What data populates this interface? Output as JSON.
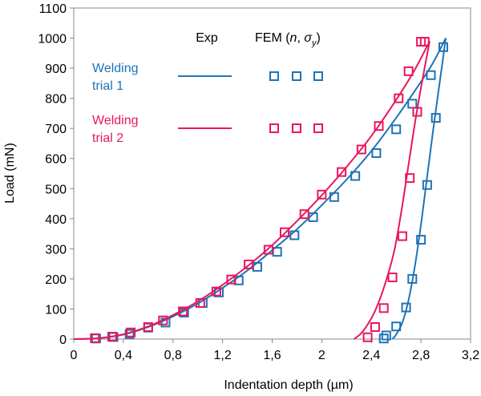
{
  "chart_data": {
    "type": "line",
    "xlabel": "Indentation depth (µm)",
    "ylabel": "Load (mN)",
    "xlim": [
      0,
      3.2
    ],
    "ylim": [
      0,
      1100
    ],
    "x_ticks": [
      "0",
      "0,4",
      "0,8",
      "1,2",
      "1,6",
      "2",
      "2,4",
      "2,8",
      "3,2"
    ],
    "y_ticks": [
      "0",
      "100",
      "200",
      "300",
      "400",
      "500",
      "600",
      "700",
      "800",
      "900",
      "1000",
      "1100"
    ],
    "grid": false,
    "legend": {
      "header_exp": "Exp",
      "header_fem_prefix": "FEM (",
      "header_fem_n": "n",
      "header_fem_comma": ", ",
      "header_fem_sigma": "σ",
      "header_fem_sub": "y",
      "header_fem_close": ")",
      "entries": [
        {
          "line1": "Welding",
          "line2": "trial 1",
          "color": "#1f73b7"
        },
        {
          "line1": "Welding",
          "line2": "trial 2",
          "color": "#e8175d"
        }
      ]
    },
    "series": [
      {
        "color": "#1f73b7",
        "exp_loading": [
          [
            0,
            0
          ],
          [
            0.2,
            3
          ],
          [
            0.4,
            15
          ],
          [
            0.6,
            40
          ],
          [
            0.8,
            75
          ],
          [
            1.0,
            118
          ],
          [
            1.2,
            170
          ],
          [
            1.4,
            228
          ],
          [
            1.6,
            295
          ],
          [
            1.8,
            365
          ],
          [
            2.0,
            445
          ],
          [
            2.2,
            530
          ],
          [
            2.4,
            625
          ],
          [
            2.6,
            735
          ],
          [
            2.8,
            855
          ],
          [
            2.9,
            920
          ],
          [
            3.0,
            1000
          ]
        ],
        "exp_unloading": [
          [
            3.0,
            1000
          ],
          [
            2.95,
            850
          ],
          [
            2.9,
            700
          ],
          [
            2.85,
            540
          ],
          [
            2.8,
            380
          ],
          [
            2.75,
            240
          ],
          [
            2.7,
            130
          ],
          [
            2.65,
            55
          ],
          [
            2.6,
            15
          ],
          [
            2.57,
            0
          ]
        ],
        "fem_points": [
          [
            0.18,
            2
          ],
          [
            0.32,
            7
          ],
          [
            0.45,
            17
          ],
          [
            0.6,
            38
          ],
          [
            0.74,
            55
          ],
          [
            0.89,
            88
          ],
          [
            1.04,
            120
          ],
          [
            1.17,
            155
          ],
          [
            1.33,
            195
          ],
          [
            1.48,
            240
          ],
          [
            1.64,
            290
          ],
          [
            1.78,
            345
          ],
          [
            1.93,
            405
          ],
          [
            2.1,
            472
          ],
          [
            2.27,
            542
          ],
          [
            2.44,
            618
          ],
          [
            2.6,
            697
          ],
          [
            2.73,
            782
          ],
          [
            2.88,
            877
          ],
          [
            2.98,
            970
          ],
          [
            2.92,
            735
          ],
          [
            2.85,
            512
          ],
          [
            2.8,
            330
          ],
          [
            2.73,
            200
          ],
          [
            2.68,
            105
          ],
          [
            2.6,
            42
          ],
          [
            2.52,
            12
          ],
          [
            2.5,
            2
          ]
        ]
      },
      {
        "color": "#e8175d",
        "exp_loading": [
          [
            0,
            0
          ],
          [
            0.2,
            3
          ],
          [
            0.4,
            16
          ],
          [
            0.6,
            42
          ],
          [
            0.8,
            80
          ],
          [
            1.0,
            125
          ],
          [
            1.2,
            180
          ],
          [
            1.4,
            242
          ],
          [
            1.6,
            312
          ],
          [
            1.8,
            392
          ],
          [
            2.0,
            478
          ],
          [
            2.2,
            572
          ],
          [
            2.4,
            675
          ],
          [
            2.6,
            795
          ],
          [
            2.75,
            895
          ],
          [
            2.87,
            990
          ]
        ],
        "exp_unloading": [
          [
            2.87,
            990
          ],
          [
            2.82,
            880
          ],
          [
            2.76,
            740
          ],
          [
            2.7,
            580
          ],
          [
            2.64,
            420
          ],
          [
            2.58,
            285
          ],
          [
            2.5,
            170
          ],
          [
            2.42,
            85
          ],
          [
            2.33,
            25
          ],
          [
            2.26,
            0
          ]
        ],
        "fem_points": [
          [
            0.17,
            3
          ],
          [
            0.31,
            8
          ],
          [
            0.46,
            22
          ],
          [
            0.6,
            40
          ],
          [
            0.72,
            62
          ],
          [
            0.88,
            92
          ],
          [
            1.02,
            120
          ],
          [
            1.15,
            158
          ],
          [
            1.27,
            198
          ],
          [
            1.41,
            248
          ],
          [
            1.57,
            297
          ],
          [
            1.7,
            355
          ],
          [
            1.86,
            415
          ],
          [
            2.0,
            480
          ],
          [
            2.16,
            555
          ],
          [
            2.32,
            630
          ],
          [
            2.46,
            708
          ],
          [
            2.62,
            800
          ],
          [
            2.7,
            890
          ],
          [
            2.83,
            988
          ],
          [
            2.8,
            988
          ],
          [
            2.77,
            755
          ],
          [
            2.71,
            535
          ],
          [
            2.65,
            342
          ],
          [
            2.57,
            205
          ],
          [
            2.5,
            103
          ],
          [
            2.43,
            40
          ],
          [
            2.37,
            6
          ]
        ]
      }
    ]
  }
}
